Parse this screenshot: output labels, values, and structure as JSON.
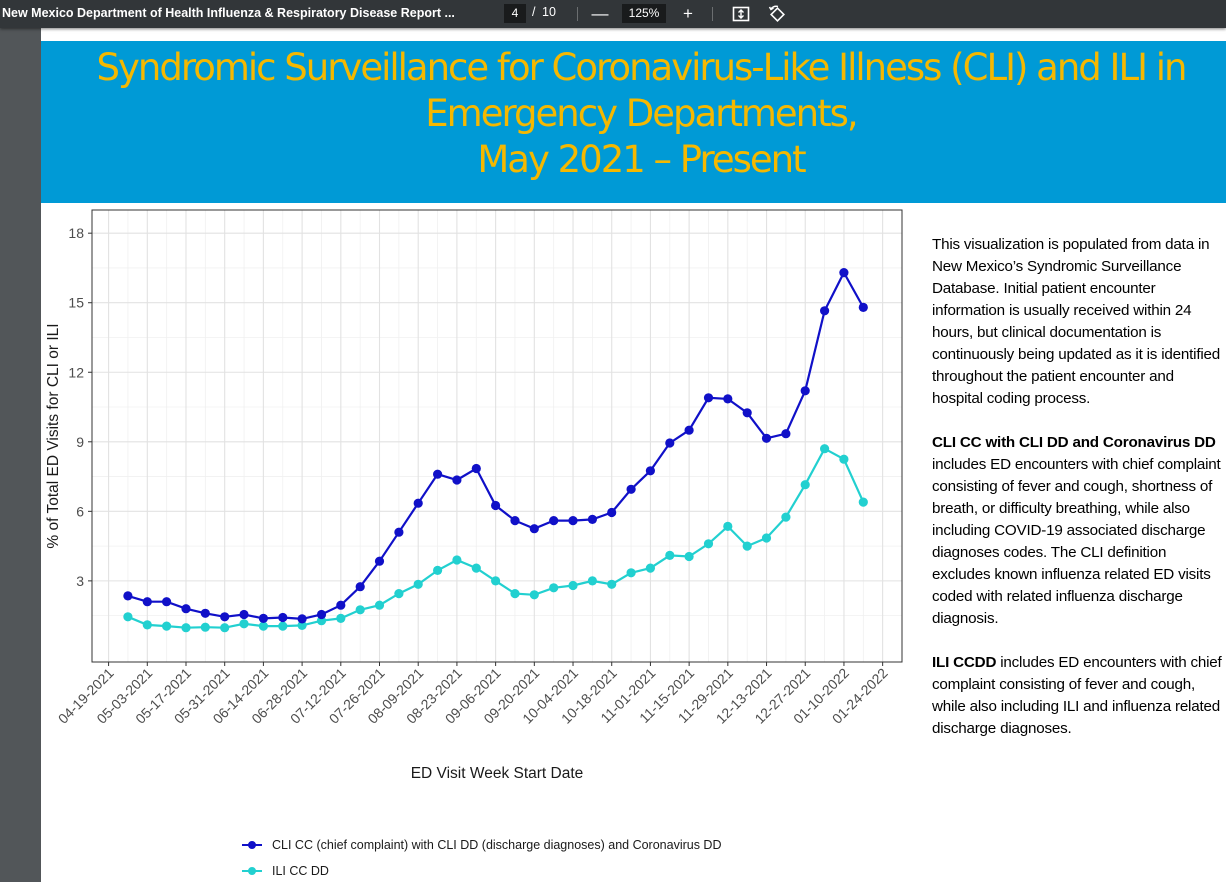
{
  "viewer": {
    "doc_title": "New Mexico Department of Health Influenza & Respiratory Disease Report ...",
    "page_current": "4",
    "page_sep": "/",
    "page_total": "10",
    "zoom_out": "—",
    "zoom": "125%",
    "zoom_in": "+"
  },
  "slide": {
    "title": "Syndromic Surveillance for Coronavirus-Like Illness (CLI) and ILI in\nEmergency Departments,\nMay 2021 – Present"
  },
  "description": {
    "p1": "This visualization is populated from data in New Mexico’s Syndromic Surveillance Database. Initial patient encounter information is usually received within 24 hours, but clinical documentation is continuously being updated as it is identified throughout the patient encounter and hospital coding process.",
    "p2_bold": "CLI CC with CLI DD and Coronavirus DD",
    "p2_text": " includes ED encounters with chief complaint consisting of fever and cough, shortness of breath, or difficulty breathing, while also including COVID-19 associated discharge diagnoses codes. The CLI definition excludes known influenza related ED visits coded with related influenza discharge diagnosis.",
    "p3_bold": "ILI CCDD",
    "p3_text": " includes ED encounters with chief complaint consisting of fever and cough, while also including ILI and influenza related discharge diagnoses."
  },
  "colors": {
    "cli": "#1010c8",
    "ili": "#22d0d0",
    "banner": "#009ad6",
    "title": "#f5b800"
  },
  "chart_data": {
    "type": "line",
    "title": "",
    "xlabel": "ED Visit Week Start Date",
    "ylabel": "% of Total ED Visits for CLI or ILI",
    "ylim": [
      -0.5,
      19
    ],
    "yticks": [
      3,
      6,
      9,
      12,
      15,
      18
    ],
    "x_tick_labels": [
      "04-19-2021",
      "05-03-2021",
      "05-17-2021",
      "05-31-2021",
      "06-14-2021",
      "06-28-2021",
      "07-12-2021",
      "07-26-2021",
      "08-09-2021",
      "08-23-2021",
      "09-06-2021",
      "09-20-2021",
      "10-04-2021",
      "10-18-2021",
      "11-01-2021",
      "11-15-2021",
      "11-29-2021",
      "12-13-2021",
      "12-27-2021",
      "01-10-2022",
      "01-24-2022"
    ],
    "x": [
      "04-26-2021",
      "05-03-2021",
      "05-10-2021",
      "05-17-2021",
      "05-24-2021",
      "05-31-2021",
      "06-07-2021",
      "06-14-2021",
      "06-21-2021",
      "06-28-2021",
      "07-05-2021",
      "07-12-2021",
      "07-19-2021",
      "07-26-2021",
      "08-02-2021",
      "08-09-2021",
      "08-16-2021",
      "08-23-2021",
      "08-30-2021",
      "09-06-2021",
      "09-13-2021",
      "09-20-2021",
      "09-27-2021",
      "10-04-2021",
      "10-11-2021",
      "10-18-2021",
      "10-25-2021",
      "11-01-2021",
      "11-08-2021",
      "11-15-2021",
      "11-22-2021",
      "11-29-2021",
      "12-06-2021",
      "12-13-2021",
      "12-20-2021",
      "12-27-2021",
      "01-03-2022",
      "01-10-2022",
      "01-17-2022"
    ],
    "grid": true,
    "legend_position": "bottom",
    "series": [
      {
        "name": "CLI CC (chief complaint) with CLI DD (discharge diagnoses) and Coronavirus DD",
        "values": [
          2.35,
          2.1,
          2.1,
          1.8,
          1.6,
          1.45,
          1.55,
          1.38,
          1.42,
          1.36,
          1.55,
          1.95,
          2.75,
          3.85,
          5.1,
          6.35,
          7.6,
          7.35,
          7.85,
          6.25,
          5.6,
          5.25,
          5.6,
          5.6,
          5.65,
          5.95,
          6.95,
          7.75,
          8.95,
          9.5,
          10.9,
          10.85,
          10.25,
          9.15,
          9.35,
          11.2,
          14.65,
          16.3,
          14.8
        ]
      },
      {
        "name": "ILI CC DD",
        "values": [
          1.45,
          1.1,
          1.05,
          0.98,
          1.0,
          0.98,
          1.15,
          1.05,
          1.05,
          1.08,
          1.28,
          1.38,
          1.75,
          1.95,
          2.45,
          2.85,
          3.45,
          3.9,
          3.55,
          3.0,
          2.45,
          2.4,
          2.7,
          2.8,
          3.0,
          2.85,
          3.35,
          3.55,
          4.1,
          4.05,
          4.6,
          5.35,
          4.5,
          4.85,
          5.75,
          7.15,
          8.7,
          8.25,
          6.4
        ]
      }
    ]
  }
}
